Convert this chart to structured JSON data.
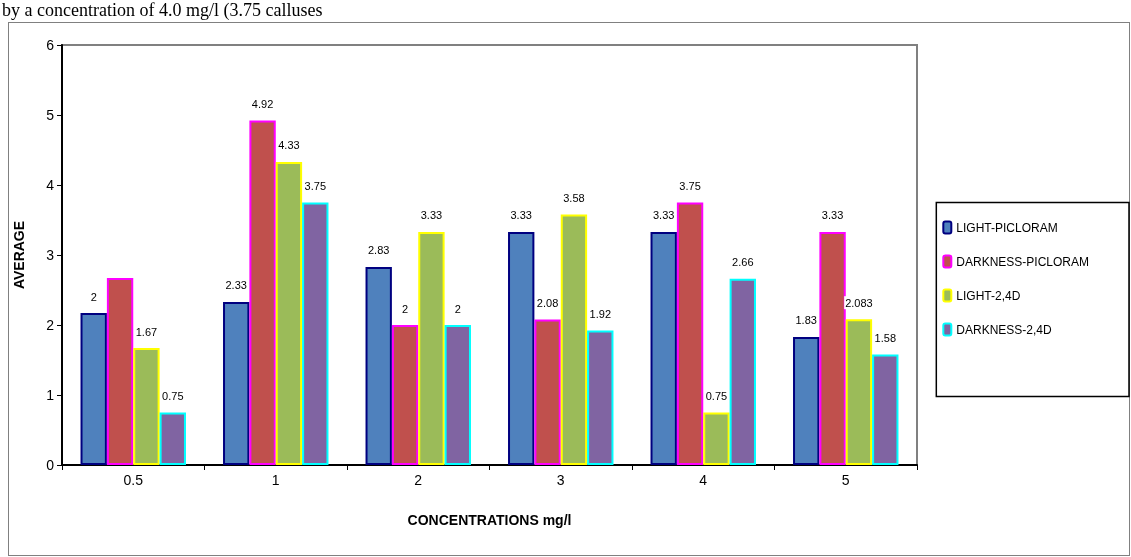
{
  "chart_data": {
    "type": "bar",
    "xlabel": "CONCENTRATIONS mg/l",
    "ylabel": "AVERAGE",
    "annotations": [
      "by a concentration of 4.0 mg/l (3.75 calluses"
    ],
    "categories": [
      "0.5",
      "1",
      "2",
      "3",
      "4",
      "5"
    ],
    "series": [
      {
        "name": "LIGHT-PICLORAM",
        "color": "#4f81bd",
        "values": [
          2.17,
          2.33,
          2.83,
          3.33,
          3.33,
          1.83
        ],
        "value_labels": [
          "2",
          "2.33",
          "2.83",
          "3.33",
          "3.33",
          "1.83"
        ]
      },
      {
        "name": "DARKNESS-PICLORAM",
        "color": "#c0504d",
        "values": [
          2.67,
          4.92,
          2,
          2.08,
          3.75,
          3.33
        ],
        "value_labels": [
          null,
          "4.92",
          "2",
          "2.08",
          "3.75",
          "3.33"
        ]
      },
      {
        "name": "LIGHT-2,4D",
        "color": "#9bbb59",
        "values": [
          1.67,
          4.33,
          3.33,
          3.58,
          0.75,
          2.083
        ],
        "value_labels": [
          "1.67",
          "4.33",
          "3.33",
          "3.58",
          "0.75",
          "2.083"
        ]
      },
      {
        "name": "DARKNESS-2,4D",
        "color": "#8064a2",
        "values": [
          0.75,
          3.75,
          2,
          1.92,
          2.66,
          1.58
        ],
        "value_labels": [
          "0.75",
          "3.75",
          "2",
          "1.92",
          "2.66",
          "1.58"
        ]
      }
    ],
    "ylim": [
      0,
      6
    ],
    "yticks": [
      0,
      1,
      2,
      3,
      4,
      5,
      6
    ],
    "grid": false,
    "legend": "right"
  }
}
